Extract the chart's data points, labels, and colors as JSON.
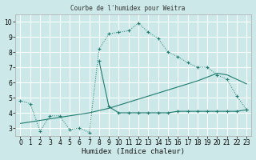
{
  "title": "Courbe de l'humidex pour Weitra",
  "xlabel": "Humidex (Indice chaleur)",
  "bg_color": "#cce8e8",
  "grid_color": "#ffffff",
  "line_color": "#1e7b6e",
  "xlim": [
    -0.5,
    23.5
  ],
  "ylim": [
    2.5,
    10.5
  ],
  "xticks": [
    0,
    1,
    2,
    3,
    4,
    5,
    6,
    7,
    8,
    9,
    10,
    11,
    12,
    13,
    14,
    15,
    16,
    17,
    18,
    19,
    20,
    21,
    22,
    23
  ],
  "yticks": [
    3,
    4,
    5,
    6,
    7,
    8,
    9,
    10
  ],
  "line1_x": [
    0,
    1,
    2,
    3,
    4,
    5,
    6,
    7,
    8,
    9,
    10,
    11,
    12,
    13,
    14,
    15,
    16,
    17,
    18,
    19,
    20,
    21,
    22,
    23
  ],
  "line1_y": [
    4.8,
    4.6,
    2.8,
    3.8,
    3.8,
    2.9,
    3.0,
    2.7,
    8.2,
    9.2,
    9.3,
    9.4,
    9.9,
    9.3,
    8.9,
    8.0,
    7.7,
    7.3,
    7.0,
    7.0,
    6.5,
    6.2,
    5.1,
    4.2
  ],
  "line2_x": [
    8,
    9,
    10,
    11,
    12,
    13,
    14,
    15,
    16,
    17,
    18,
    19,
    20,
    21,
    22,
    23
  ],
  "line2_y": [
    7.4,
    4.4,
    4.0,
    4.0,
    4.0,
    4.0,
    4.0,
    4.0,
    4.1,
    4.1,
    4.1,
    4.1,
    4.1,
    4.1,
    4.1,
    4.2
  ],
  "line3_x": [
    0,
    1,
    2,
    3,
    4,
    5,
    6,
    7,
    8,
    9,
    10,
    11,
    12,
    13,
    14,
    15,
    16,
    17,
    18,
    19,
    20,
    21,
    22,
    23
  ],
  "line3_y": [
    3.3,
    3.4,
    3.5,
    3.6,
    3.7,
    3.8,
    3.9,
    4.0,
    4.15,
    4.3,
    4.5,
    4.7,
    4.9,
    5.1,
    5.3,
    5.5,
    5.7,
    5.9,
    6.1,
    6.35,
    6.6,
    6.5,
    6.2,
    5.9
  ]
}
